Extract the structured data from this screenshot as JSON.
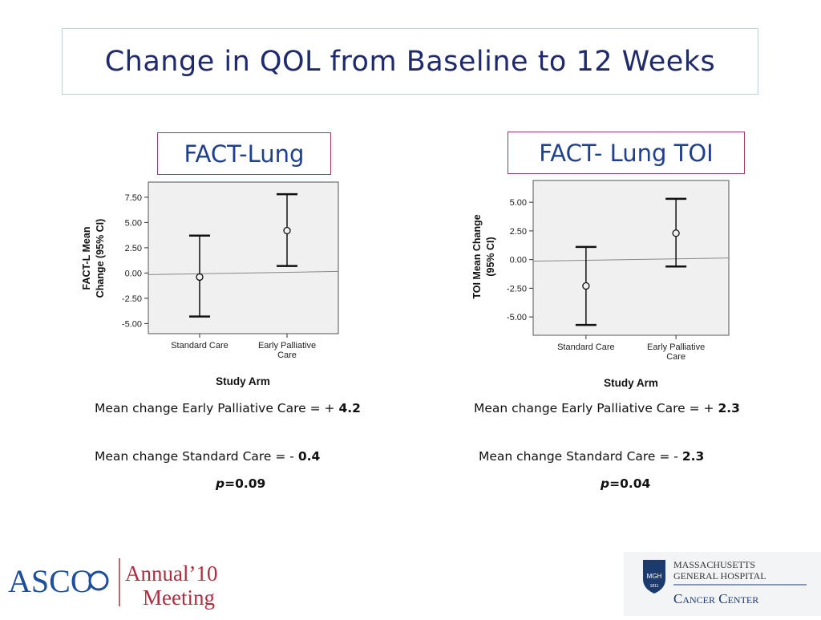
{
  "slide": {
    "title": "Change in QOL from Baseline to 12 Weeks"
  },
  "panels": [
    {
      "label": "FACT-Lung",
      "stat_early": "Mean change Early Palliative Care = +",
      "stat_early_value": "4.2",
      "stat_std": "Mean change Standard Care = -",
      "stat_std_value": "0.4",
      "p_label": "p",
      "p_value": "=0.09"
    },
    {
      "label": "FACT- Lung TOI",
      "stat_early": "Mean change Early Palliative Care = +",
      "stat_early_value": "2.3",
      "stat_std": "Mean change Standard Care = -",
      "stat_std_value": "2.3",
      "p_label": "p",
      "p_value": "=0.04"
    }
  ],
  "chart_data": [
    {
      "type": "scatter",
      "subtype": "error-bar",
      "categories": [
        "Standard Care",
        "Early Palliative Care"
      ],
      "means": [
        -0.4,
        4.2
      ],
      "ci_lower": [
        -4.3,
        0.7
      ],
      "ci_upper": [
        3.7,
        7.8
      ],
      "xlabel": "Study Arm",
      "ylabel": [
        "FACT-L Mean",
        "Change (95% CI)"
      ],
      "yticks": [
        "7.50",
        "5.00",
        "2.50",
        "0.00",
        "-2.50",
        "-5.00"
      ],
      "ylim": [
        -6.0,
        9.0
      ],
      "reference_line": 0,
      "grid": false
    },
    {
      "type": "scatter",
      "subtype": "error-bar",
      "categories": [
        "Standard Care",
        "Early Palliative Care"
      ],
      "means": [
        -2.3,
        2.3
      ],
      "ci_lower": [
        -5.7,
        -0.6
      ],
      "ci_upper": [
        1.1,
        5.3
      ],
      "xlabel": "Study Arm",
      "ylabel": [
        "TOI Mean Change",
        "(95% CI)"
      ],
      "yticks": [
        "5.00",
        "2.50",
        "0.00",
        "-2.50",
        "-5.00"
      ],
      "ylim": [
        -6.6,
        6.9
      ],
      "reference_line": 0,
      "grid": false
    }
  ],
  "logos": {
    "asco_text": "ASCO",
    "asco_annual": "Annual",
    "asco_year": "’10",
    "asco_meeting": "Meeting",
    "mgh_seal": "MGH",
    "mgh_seal_year": "1811",
    "mgh_line1": "MASSACHUSETTS",
    "mgh_line2": "GENERAL HOSPITAL",
    "mgh_line3": "Cancer Center"
  },
  "colors": {
    "title": "#1f2a6e",
    "label_text": "#1f3f8f",
    "label_border": "#a33a5a",
    "plot_bg": "#f0f0f0",
    "asco_blue": "#1e4f9c",
    "asco_red": "#b22b3f",
    "mgh_navy": "#1d3a6e"
  }
}
